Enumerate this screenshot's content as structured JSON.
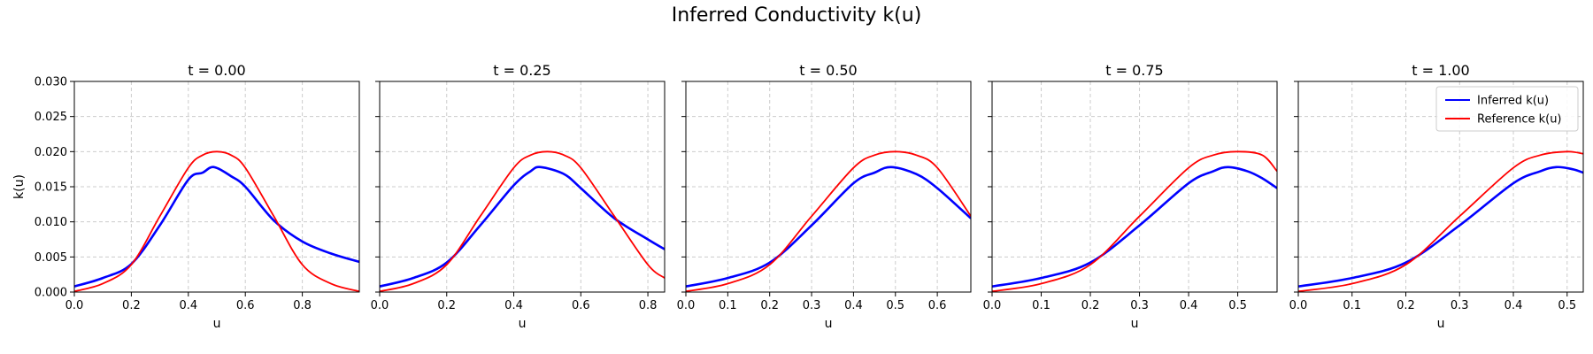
{
  "figure": {
    "title": "Inferred Conductivity k(u)"
  },
  "chart_data": [
    {
      "type": "line",
      "title": "t = 0.00",
      "xlabel": "u",
      "ylabel": "k(u)",
      "xlim": [
        0.0,
        1.0
      ],
      "ylim": [
        0.0,
        0.03
      ],
      "xticks": [
        "0.0",
        "0.2",
        "0.4",
        "0.6",
        "0.8"
      ],
      "yticks": [
        "0.000",
        "0.005",
        "0.010",
        "0.015",
        "0.020",
        "0.025",
        "0.030"
      ],
      "grid": true,
      "series": [
        {
          "name": "Inferred k(u)",
          "color": "#0000ff",
          "x": [
            0.0,
            0.1,
            0.2,
            0.3,
            0.4,
            0.45,
            0.49,
            0.55,
            0.6,
            0.7,
            0.8,
            0.9,
            1.0
          ],
          "y": [
            0.0008,
            0.002,
            0.004,
            0.0095,
            0.016,
            0.017,
            0.0178,
            0.0165,
            0.015,
            0.0102,
            0.0072,
            0.0055,
            0.0043
          ]
        },
        {
          "name": "Reference k(u)",
          "color": "#ff0000",
          "x": [
            0.0,
            0.1,
            0.2,
            0.3,
            0.4,
            0.45,
            0.5,
            0.55,
            0.6,
            0.7,
            0.8,
            0.9,
            1.0
          ],
          "y": [
            0.0001,
            0.0012,
            0.0039,
            0.0108,
            0.0177,
            0.0195,
            0.02,
            0.0195,
            0.0177,
            0.0108,
            0.0039,
            0.0012,
            0.0001
          ]
        }
      ]
    },
    {
      "type": "line",
      "title": "t = 0.25",
      "xlabel": "u",
      "xlim": [
        0.0,
        0.85
      ],
      "ylim": [
        0.0,
        0.03
      ],
      "xticks": [
        "0.0",
        "0.2",
        "0.4",
        "0.6",
        "0.8"
      ],
      "grid": true,
      "series": [
        {
          "name": "Inferred k(u)",
          "color": "#0000ff",
          "x": [
            0.0,
            0.1,
            0.2,
            0.3,
            0.4,
            0.45,
            0.48,
            0.55,
            0.6,
            0.7,
            0.8,
            0.85
          ],
          "y": [
            0.0008,
            0.002,
            0.0042,
            0.0095,
            0.0152,
            0.0172,
            0.0178,
            0.0168,
            0.0148,
            0.0105,
            0.0075,
            0.0061
          ]
        },
        {
          "name": "Reference k(u)",
          "color": "#ff0000",
          "x": [
            0.0,
            0.1,
            0.2,
            0.3,
            0.4,
            0.45,
            0.5,
            0.55,
            0.6,
            0.7,
            0.8,
            0.85
          ],
          "y": [
            0.0001,
            0.0012,
            0.0039,
            0.0108,
            0.0177,
            0.0195,
            0.02,
            0.0195,
            0.0177,
            0.0108,
            0.0039,
            0.002
          ]
        }
      ]
    },
    {
      "type": "line",
      "title": "t = 0.50",
      "xlabel": "u",
      "xlim": [
        0.0,
        0.68
      ],
      "ylim": [
        0.0,
        0.03
      ],
      "xticks": [
        "0.0",
        "0.1",
        "0.2",
        "0.3",
        "0.4",
        "0.5",
        "0.6"
      ],
      "grid": true,
      "series": [
        {
          "name": "Inferred k(u)",
          "color": "#0000ff",
          "x": [
            0.0,
            0.1,
            0.2,
            0.3,
            0.4,
            0.45,
            0.49,
            0.55,
            0.6,
            0.68
          ],
          "y": [
            0.0008,
            0.002,
            0.0042,
            0.0095,
            0.0155,
            0.017,
            0.0178,
            0.0168,
            0.0148,
            0.0105
          ]
        },
        {
          "name": "Reference k(u)",
          "color": "#ff0000",
          "x": [
            0.0,
            0.1,
            0.2,
            0.3,
            0.4,
            0.45,
            0.5,
            0.55,
            0.6,
            0.68
          ],
          "y": [
            0.0001,
            0.0012,
            0.0039,
            0.0108,
            0.0177,
            0.0195,
            0.02,
            0.0195,
            0.0177,
            0.0108
          ]
        }
      ]
    },
    {
      "type": "line",
      "title": "t = 0.75",
      "xlabel": "u",
      "xlim": [
        0.0,
        0.58
      ],
      "ylim": [
        0.0,
        0.03
      ],
      "xticks": [
        "0.0",
        "0.1",
        "0.2",
        "0.3",
        "0.4",
        "0.5"
      ],
      "grid": true,
      "series": [
        {
          "name": "Inferred k(u)",
          "color": "#0000ff",
          "x": [
            0.0,
            0.1,
            0.2,
            0.3,
            0.4,
            0.45,
            0.48,
            0.52,
            0.55,
            0.58
          ],
          "y": [
            0.0008,
            0.002,
            0.0042,
            0.0095,
            0.0155,
            0.0172,
            0.0178,
            0.0172,
            0.0162,
            0.0148
          ]
        },
        {
          "name": "Reference k(u)",
          "color": "#ff0000",
          "x": [
            0.0,
            0.1,
            0.2,
            0.3,
            0.4,
            0.45,
            0.5,
            0.55,
            0.58
          ],
          "y": [
            0.0001,
            0.0012,
            0.0039,
            0.0108,
            0.0177,
            0.0195,
            0.02,
            0.0195,
            0.0172
          ]
        }
      ]
    },
    {
      "type": "line",
      "title": "t = 1.00",
      "xlabel": "u",
      "xlim": [
        0.0,
        0.53
      ],
      "ylim": [
        0.0,
        0.03
      ],
      "xticks": [
        "0.0",
        "0.1",
        "0.2",
        "0.3",
        "0.4",
        "0.5"
      ],
      "grid": true,
      "legend": "top-right",
      "series": [
        {
          "name": "Inferred k(u)",
          "color": "#0000ff",
          "x": [
            0.0,
            0.1,
            0.2,
            0.3,
            0.4,
            0.45,
            0.48,
            0.51,
            0.53
          ],
          "y": [
            0.0008,
            0.002,
            0.0042,
            0.0095,
            0.0155,
            0.0172,
            0.0178,
            0.0175,
            0.017
          ]
        },
        {
          "name": "Reference k(u)",
          "color": "#ff0000",
          "x": [
            0.0,
            0.1,
            0.2,
            0.3,
            0.4,
            0.45,
            0.5,
            0.53
          ],
          "y": [
            0.0001,
            0.0012,
            0.0039,
            0.0108,
            0.0177,
            0.0195,
            0.02,
            0.0197
          ]
        }
      ]
    }
  ]
}
